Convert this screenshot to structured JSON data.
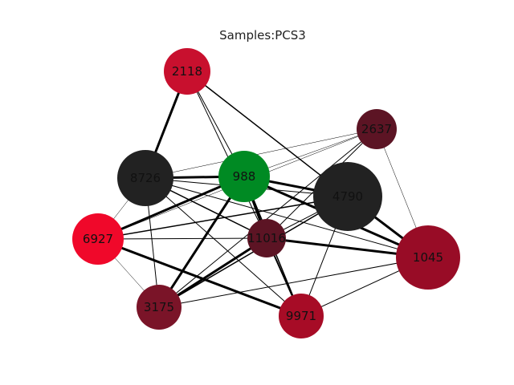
{
  "figure": {
    "title": "Samples:PCS3"
  },
  "graph": {
    "nodes": [
      {
        "id": "2118",
        "label": "2118",
        "color": "#c8102e"
      },
      {
        "id": "2637",
        "label": "2637",
        "color": "#5c1424"
      },
      {
        "id": "8726",
        "label": "8726",
        "color": "#222222"
      },
      {
        "id": "988",
        "label": "988",
        "color": "#008a23"
      },
      {
        "id": "4790",
        "label": "4790",
        "color": "#222222"
      },
      {
        "id": "6927",
        "label": "6927",
        "color": "#f0082a"
      },
      {
        "id": "11016",
        "label": "11016",
        "color": "#5c1424"
      },
      {
        "id": "1045",
        "label": "1045",
        "color": "#980c26"
      },
      {
        "id": "3175",
        "label": "3175",
        "color": "#7a1428"
      },
      {
        "id": "9971",
        "label": "9971",
        "color": "#a70c26"
      }
    ],
    "edges": [
      {
        "source": "2118",
        "target": "8726",
        "weight": 3
      },
      {
        "source": "2118",
        "target": "988",
        "weight": 1
      },
      {
        "source": "2118",
        "target": "4790",
        "weight": 1.5
      },
      {
        "source": "2118",
        "target": "11016",
        "weight": 1
      },
      {
        "source": "2637",
        "target": "8726",
        "weight": 0.5
      },
      {
        "source": "2637",
        "target": "988",
        "weight": 0.5
      },
      {
        "source": "2637",
        "target": "6927",
        "weight": 0.5
      },
      {
        "source": "2637",
        "target": "11016",
        "weight": 1
      },
      {
        "source": "2637",
        "target": "1045",
        "weight": 0.5
      },
      {
        "source": "2637",
        "target": "3175",
        "weight": 1
      },
      {
        "source": "8726",
        "target": "988",
        "weight": 3
      },
      {
        "source": "8726",
        "target": "4790",
        "weight": 1
      },
      {
        "source": "8726",
        "target": "6927",
        "weight": 0.5
      },
      {
        "source": "8726",
        "target": "11016",
        "weight": 1.5
      },
      {
        "source": "8726",
        "target": "1045",
        "weight": 1
      },
      {
        "source": "8726",
        "target": "3175",
        "weight": 1
      },
      {
        "source": "8726",
        "target": "9971",
        "weight": 1
      },
      {
        "source": "988",
        "target": "4790",
        "weight": 3
      },
      {
        "source": "988",
        "target": "6927",
        "weight": 3
      },
      {
        "source": "988",
        "target": "11016",
        "weight": 3
      },
      {
        "source": "988",
        "target": "1045",
        "weight": 3
      },
      {
        "source": "988",
        "target": "3175",
        "weight": 3
      },
      {
        "source": "988",
        "target": "9971",
        "weight": 1.5
      },
      {
        "source": "4790",
        "target": "6927",
        "weight": 1.5
      },
      {
        "source": "4790",
        "target": "11016",
        "weight": 1
      },
      {
        "source": "4790",
        "target": "1045",
        "weight": 3
      },
      {
        "source": "4790",
        "target": "3175",
        "weight": 1.5
      },
      {
        "source": "4790",
        "target": "9971",
        "weight": 1
      },
      {
        "source": "6927",
        "target": "11016",
        "weight": 1
      },
      {
        "source": "6927",
        "target": "3175",
        "weight": 0.5
      },
      {
        "source": "6927",
        "target": "9971",
        "weight": 3
      },
      {
        "source": "11016",
        "target": "1045",
        "weight": 3
      },
      {
        "source": "11016",
        "target": "3175",
        "weight": 3
      },
      {
        "source": "11016",
        "target": "9971",
        "weight": 2
      },
      {
        "source": "1045",
        "target": "3175",
        "weight": 1
      },
      {
        "source": "1045",
        "target": "9971",
        "weight": 1
      }
    ]
  }
}
